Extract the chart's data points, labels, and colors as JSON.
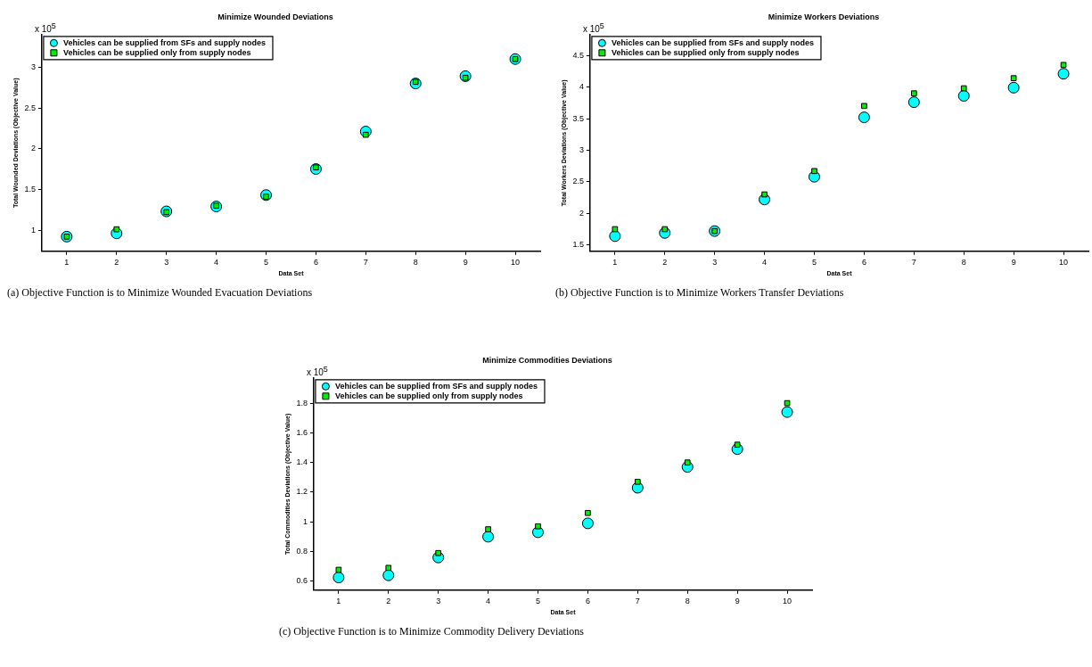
{
  "chart_data": [
    {
      "type": "scatter",
      "title": "Minimize Wounded Deviations",
      "xlabel": "Data Set",
      "ylabel": "Total Wounded Deviations (Objective Value)",
      "annotations": [
        "x 10$^{5}$",
        "(a) Objective Function is to Minimize Wounded Evacuation Deviations"
      ],
      "x": [
        1,
        2,
        3,
        4,
        5,
        6,
        7,
        8,
        9,
        10
      ],
      "xlim": [
        0.5,
        10.5
      ],
      "xticks": [
        1,
        2,
        3,
        4,
        5,
        6,
        7,
        8,
        9,
        10
      ],
      "ylim": [
        0.74,
        3.4
      ],
      "yticks": [
        1,
        1.5,
        2,
        2.5,
        3
      ],
      "grid": false,
      "legend": "top left",
      "series": [
        {
          "name": "Vehicles can be supplied from SFs and supply nodes",
          "color": "#00ffff",
          "marker": "circle",
          "values": [
            0.92,
            0.96,
            1.23,
            1.29,
            1.43,
            1.75,
            2.21,
            2.8,
            2.89,
            3.1
          ]
        },
        {
          "name": "Vehicles can be supplied only from supply nodes",
          "color": "#00ee00",
          "marker": "square",
          "values": [
            0.92,
            1.01,
            1.22,
            1.3,
            1.41,
            1.77,
            2.17,
            2.82,
            2.87,
            3.1
          ]
        }
      ]
    },
    {
      "type": "scatter",
      "title": "Minimize Workers Deviations",
      "xlabel": "Data Set",
      "ylabel": "Total Workers Deviations (Objective Value)",
      "annotations": [
        "x 10$^{5}$",
        "(b) Objective Function is to Minimize Workers Transfer Deviations"
      ],
      "x": [
        1,
        2,
        3,
        4,
        5,
        6,
        7,
        8,
        9,
        10
      ],
      "xlim": [
        0.5,
        10.5
      ],
      "xticks": [
        1,
        2,
        3,
        4,
        5,
        6,
        7,
        8,
        9,
        10
      ],
      "ylim": [
        1.4,
        4.83
      ],
      "yticks": [
        1.5,
        2,
        2.5,
        3,
        3.5,
        4,
        4.5
      ],
      "grid": false,
      "legend": "top left",
      "series": [
        {
          "name": "Vehicles can be supplied from SFs and supply nodes",
          "color": "#00ffff",
          "marker": "circle",
          "values": [
            1.64,
            1.69,
            1.72,
            2.22,
            2.58,
            3.52,
            3.76,
            3.86,
            3.99,
            4.21
          ]
        },
        {
          "name": "Vehicles can be supplied only from supply nodes",
          "color": "#00ee00",
          "marker": "square",
          "values": [
            1.75,
            1.75,
            1.72,
            2.3,
            2.67,
            3.7,
            3.9,
            3.98,
            4.14,
            4.35
          ]
        }
      ]
    },
    {
      "type": "scatter",
      "title": "Minimize Commodities Deviations",
      "xlabel": "Data Set",
      "ylabel": "Total Commodities Deviations (Objective Value)",
      "annotations": [
        "x 10$^{5}$",
        "(c) Objective Function is to Minimize Commodity Delivery Deviations"
      ],
      "x": [
        1,
        2,
        3,
        4,
        5,
        6,
        7,
        8,
        9,
        10
      ],
      "xlim": [
        0.5,
        10.5
      ],
      "xticks": [
        1,
        2,
        3,
        4,
        5,
        6,
        7,
        8,
        9,
        10
      ],
      "ylim": [
        0.54,
        1.97
      ],
      "yticks": [
        0.6,
        0.8,
        1,
        1.2,
        1.4,
        1.6,
        1.8
      ],
      "grid": false,
      "legend": "top left",
      "series": [
        {
          "name": "Vehicles can be supplied from SFs and supply nodes",
          "color": "#00ffff",
          "marker": "circle",
          "values": [
            0.625,
            0.64,
            0.76,
            0.9,
            0.93,
            0.99,
            1.23,
            1.37,
            1.49,
            1.74
          ]
        },
        {
          "name": "Vehicles can be supplied only from supply nodes",
          "color": "#00ee00",
          "marker": "square",
          "values": [
            0.677,
            0.69,
            0.79,
            0.95,
            0.97,
            1.06,
            1.27,
            1.4,
            1.52,
            1.8
          ]
        }
      ]
    }
  ]
}
